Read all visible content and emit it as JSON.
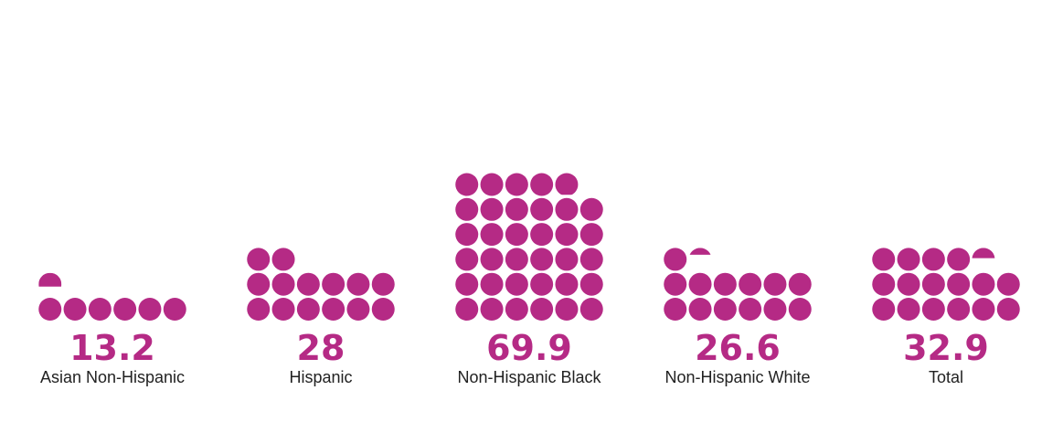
{
  "chart_data": {
    "type": "bar",
    "style": "pictogram-dots",
    "units_per_dot": 2,
    "dots_per_row": 6,
    "categories": [
      "Asian Non-Hispanic",
      "Hispanic",
      "Non-Hispanic Black",
      "Non-Hispanic White",
      "Total"
    ],
    "values": [
      13.2,
      28,
      69.9,
      26.6,
      32.9
    ],
    "value_labels": [
      "13.2",
      "28",
      "69.9",
      "26.6",
      "32.9"
    ],
    "title": "",
    "xlabel": "",
    "ylabel": "",
    "grid": false,
    "legend": "none"
  },
  "colors": {
    "dot": "#B52A85",
    "value_text": "#B52A85",
    "label_text": "#222222"
  }
}
